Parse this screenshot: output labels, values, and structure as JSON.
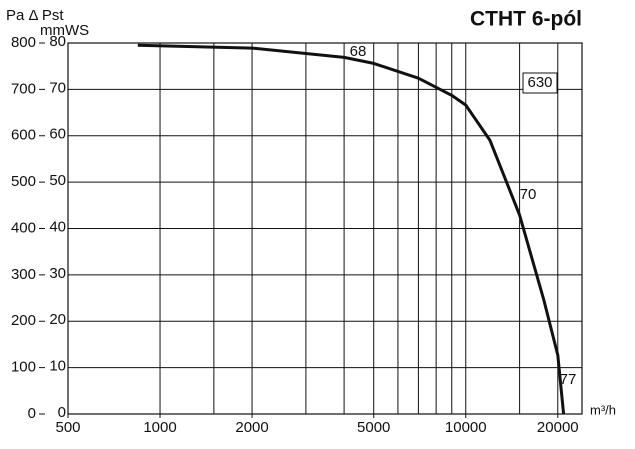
{
  "chart_data": {
    "type": "line",
    "title": "CTHT 6-pól",
    "y_label": "Pa Δ Pst",
    "y2_label": "mmWS",
    "x_label": "m³/h",
    "log_x": true,
    "grid": true,
    "xlim": [
      500,
      24000
    ],
    "xticks": [
      500,
      1000,
      2000,
      5000,
      10000,
      20000
    ],
    "xgrid": [
      1000,
      1500,
      2000,
      3000,
      4000,
      5000,
      6000,
      7000,
      8000,
      9000,
      10000,
      15000,
      20000
    ],
    "ylim": [
      0,
      800
    ],
    "yticks": [
      0,
      100,
      200,
      300,
      400,
      500,
      600,
      700,
      800
    ],
    "y2lim": [
      0,
      80
    ],
    "y2ticks": [
      0,
      10,
      20,
      30,
      40,
      50,
      60,
      70,
      80
    ],
    "x": [
      846,
      2000,
      4000,
      5000,
      7000,
      9000,
      10000,
      12000,
      15000,
      18000,
      20000,
      20900
    ],
    "series": [
      {
        "color": "#111111",
        "values": [
          795,
          789,
          769,
          756,
          724,
          687,
          666,
          590,
          429,
          246,
          127,
          0
        ]
      }
    ],
    "annotations": [
      "68",
      "630",
      "70",
      "77"
    ]
  }
}
